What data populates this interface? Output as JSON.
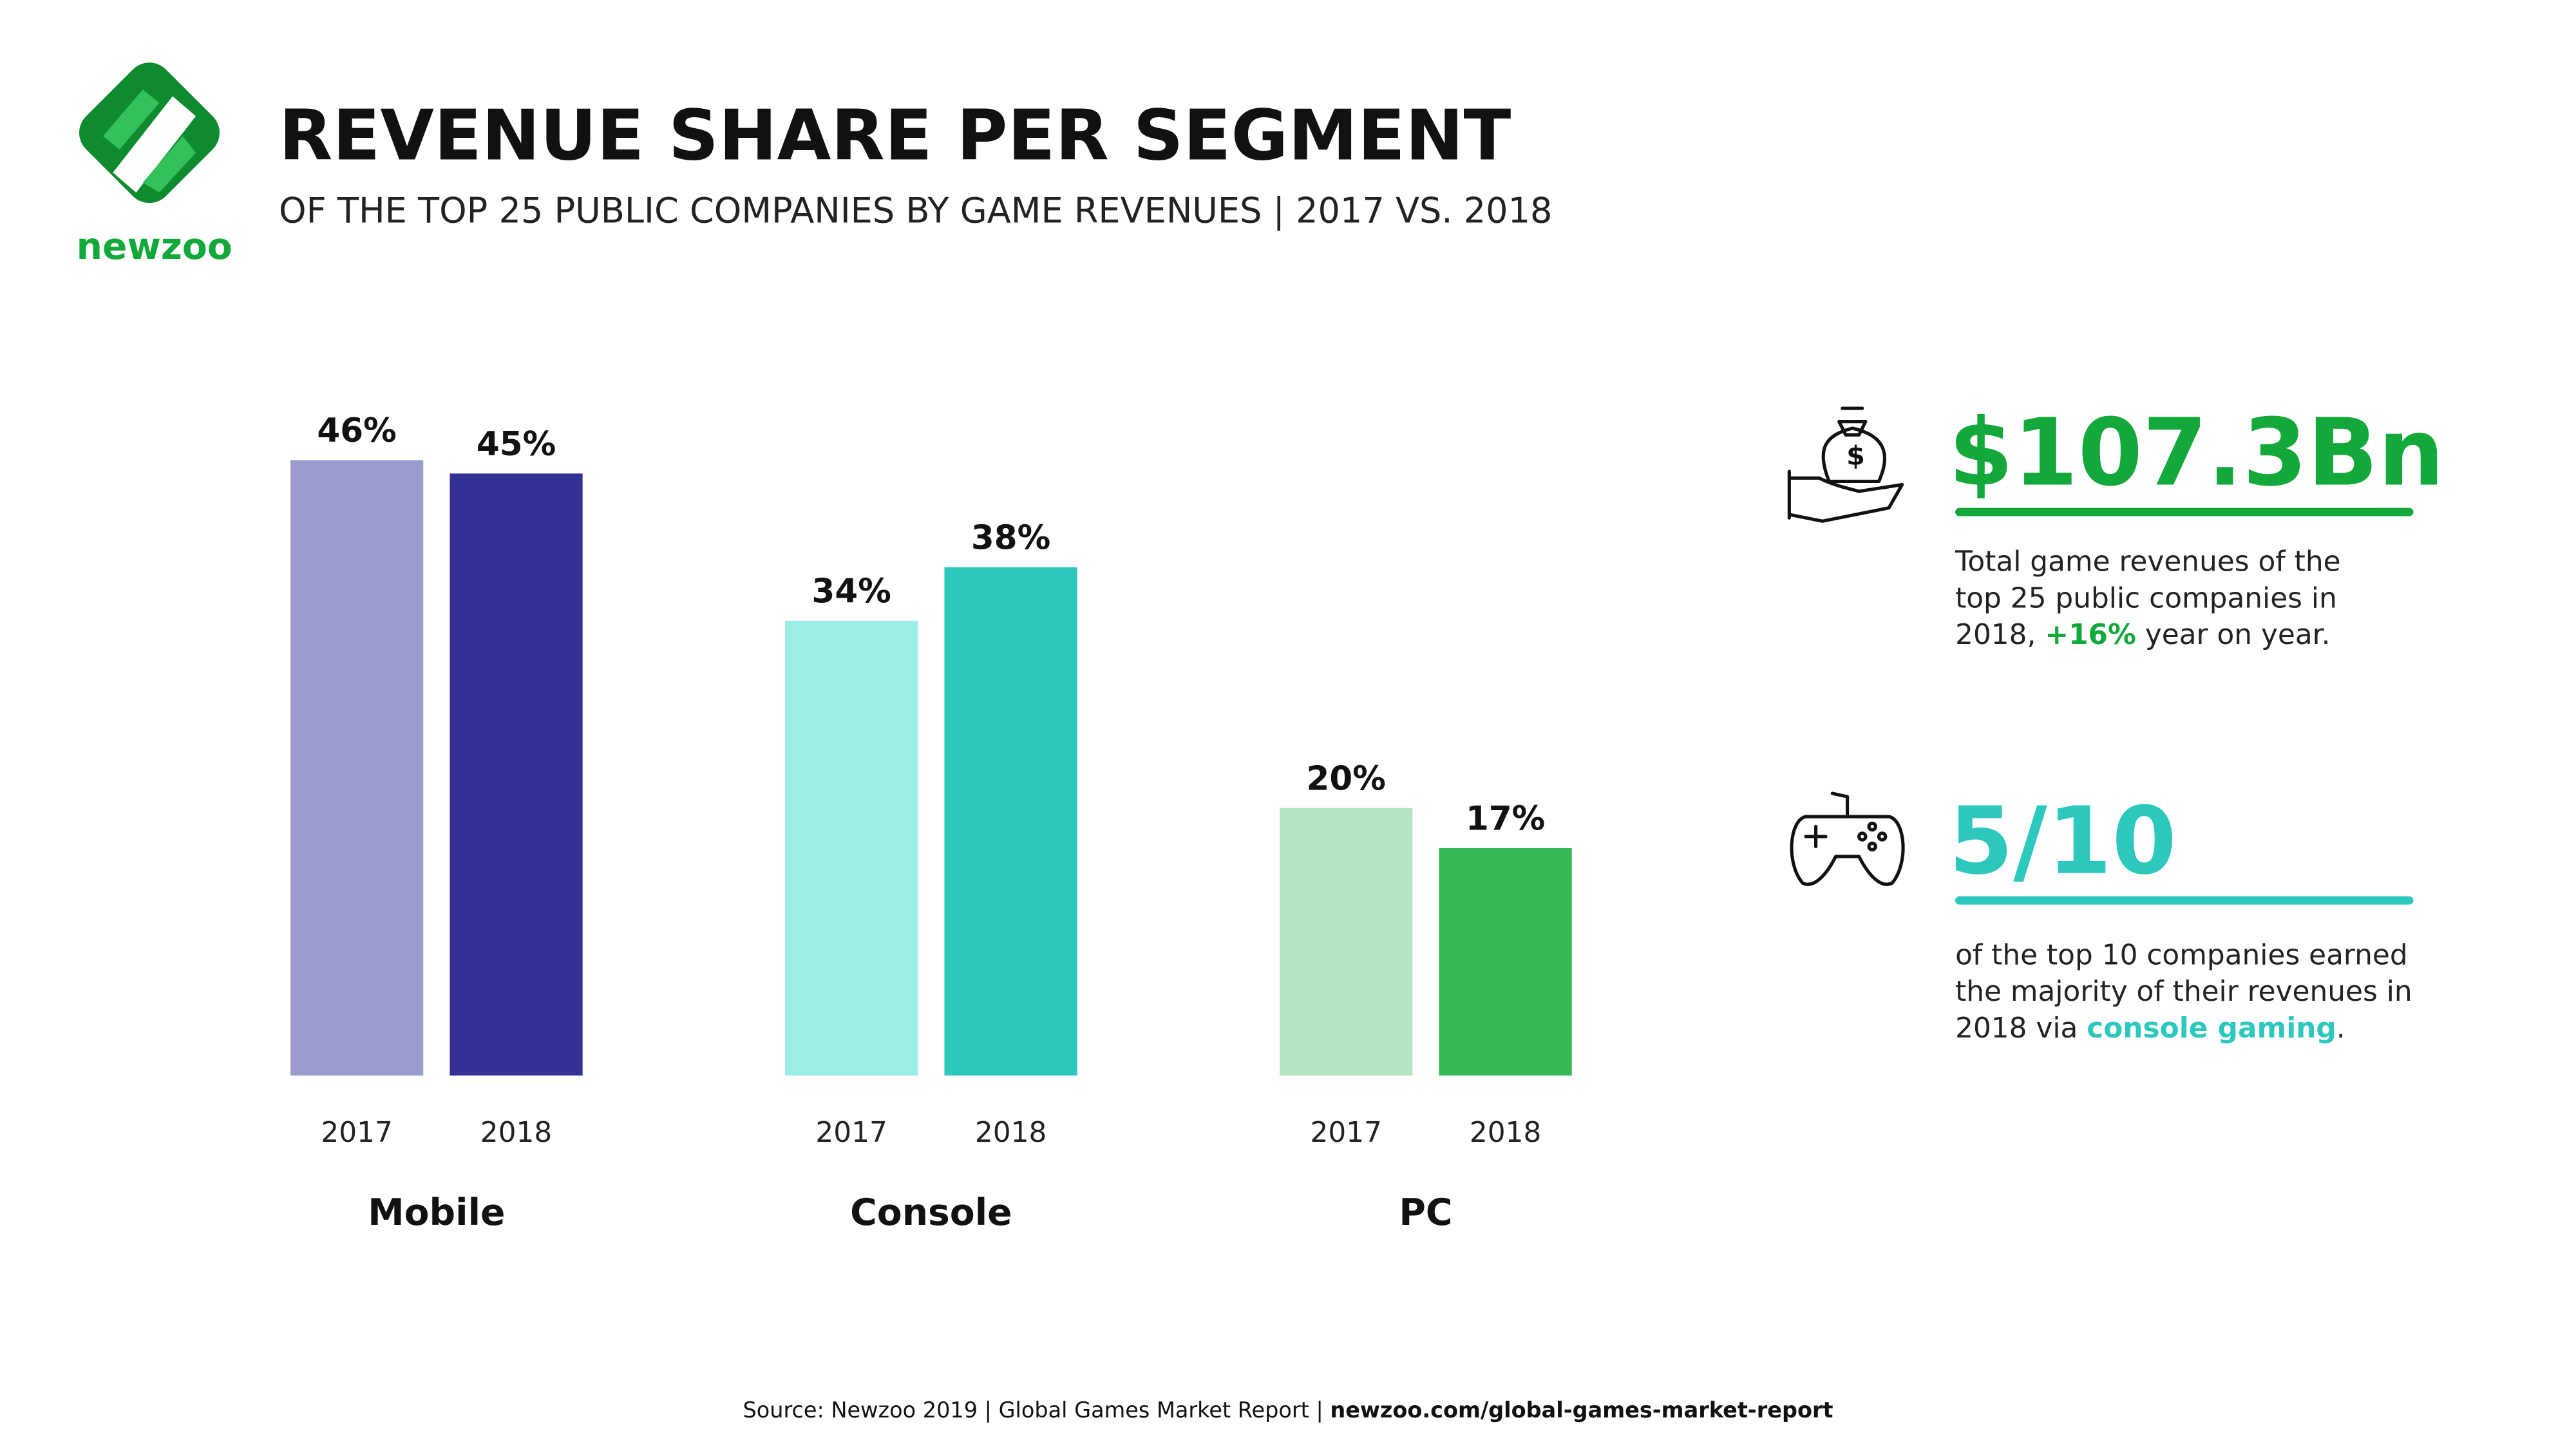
{
  "logo": "newzoo",
  "chart_data": {
    "type": "bar",
    "title": "REVENUE SHARE PER SEGMENT",
    "subtitle": "OF THE TOP 25 PUBLIC COMPANIES BY GAME REVENUES | 2017 VS. 2018",
    "categories": [
      "Mobile",
      "Console",
      "PC"
    ],
    "series": [
      {
        "name": "2017",
        "colors": [
          "#9b9bcc",
          "#9beee4",
          "#b3e4c2"
        ],
        "values": [
          46,
          34,
          20
        ],
        "value_labels": [
          "46%",
          "34%",
          "20%"
        ]
      },
      {
        "name": "2018",
        "colors": [
          "#333096",
          "#2cc8bd",
          "#35b858"
        ],
        "values": [
          45,
          38,
          17
        ],
        "value_labels": [
          "45%",
          "38%",
          "17%"
        ]
      }
    ]
  },
  "stats": [
    {
      "value": "$107.3Bn",
      "color": "#12a83a",
      "lines": [
        [
          "Total game revenues of the"
        ],
        [
          "top 25 public companies in"
        ],
        [
          "2018, ",
          "+16%",
          " year on year."
        ]
      ]
    },
    {
      "value": "5/10",
      "color": "#2cc8bd",
      "lines": [
        [
          "of the top 10 companies earned"
        ],
        [
          "the majority of their revenues in"
        ],
        [
          "2018 via ",
          "console gaming",
          "."
        ]
      ]
    }
  ],
  "source": [
    "Source: Newzoo 2019 | Global Games Market Report | ",
    "newzoo.com/global-games-market-report"
  ]
}
